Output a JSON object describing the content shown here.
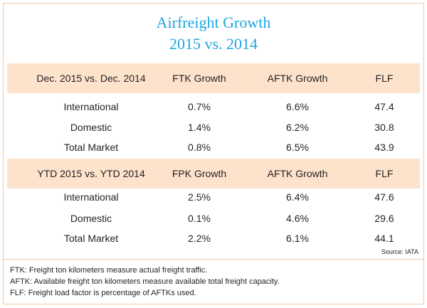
{
  "title_line1": "Airfreight Growth",
  "title_line2": "2015 vs. 2014",
  "chart_data": {
    "type": "table",
    "sections": [
      {
        "headers": [
          "Dec. 2015 vs. Dec. 2014",
          "FTK Growth",
          "AFTK Growth",
          "FLF"
        ],
        "rows": [
          [
            "International",
            "0.7%",
            "6.6%",
            "47.4"
          ],
          [
            "Domestic",
            "1.4%",
            "6.2%",
            "30.8"
          ],
          [
            "Total Market",
            "0.8%",
            "6.5%",
            "43.9"
          ]
        ]
      },
      {
        "headers": [
          "YTD 2015 vs. YTD 2014",
          "FPK Growth",
          "AFTK Growth",
          "FLF"
        ],
        "rows": [
          [
            "International",
            "2.5%",
            "6.4%",
            "47.6"
          ],
          [
            "Domestic",
            "0.1%",
            "4.6%",
            "29.6"
          ],
          [
            "Total Market",
            "2.2%",
            "6.1%",
            "44.1"
          ]
        ]
      }
    ]
  },
  "source": "Source: IATA",
  "notes": [
    "FTK: Freight ton kilometers measure actual freight traffic.",
    "AFTK: Available freight ton kilometers measure available total freight capacity.",
    "FLF: Freight load factor is percentage of AFTKs used."
  ],
  "colors": {
    "title": "#1ea6e0",
    "header_band": "#fde3cc",
    "border": "#f3c9a4"
  }
}
